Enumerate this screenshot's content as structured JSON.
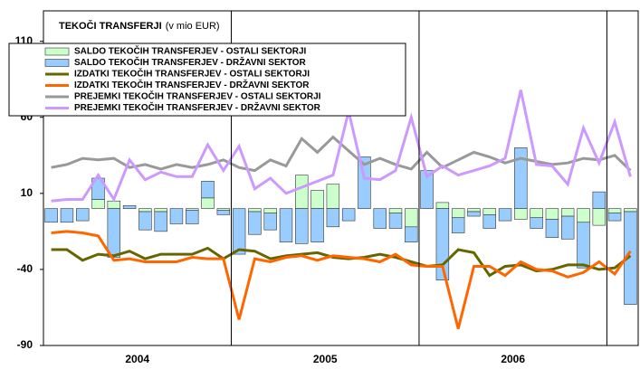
{
  "chart_data": {
    "type": "bar_line",
    "title": "TEKOČI TRANSFERJI",
    "subtitle": "(v mio EUR)",
    "categories": [
      null,
      null,
      null,
      null,
      null,
      null,
      null,
      null,
      null,
      null,
      null,
      null,
      null,
      null,
      null,
      null,
      null,
      null,
      null,
      null,
      null,
      null,
      null,
      null,
      null,
      null,
      null,
      null,
      null,
      null,
      null,
      null,
      null,
      null,
      null,
      null,
      null,
      null
    ],
    "year_labels": [
      "2004",
      "2005",
      "2006"
    ],
    "ylim": [
      -90,
      130
    ],
    "yticks": [
      -90,
      -40,
      10,
      60,
      110
    ],
    "grid": false,
    "series": [
      {
        "name": "SALDO TEKOČIH TRANSFERJEV - OSTALI SEKTORJI",
        "kind": "bar",
        "color": "#ccffcc",
        "values": [
          0,
          0,
          0,
          6,
          5,
          0,
          -2,
          -2,
          0,
          -1,
          7,
          -1,
          0,
          -2,
          -3,
          0,
          22,
          12,
          16,
          0,
          0,
          0,
          -3,
          -12,
          0,
          4,
          -6,
          -2,
          -4,
          0,
          -7,
          -6,
          -7,
          -5,
          -9,
          -11,
          -3,
          -2
        ]
      },
      {
        "name": "SALDO TEKOČIH TRANSFERJEV - DRŽAVNI SEKTOR",
        "kind": "bar",
        "color": "#99ccff",
        "values": [
          -9,
          -9,
          -8,
          14,
          -32,
          2,
          -12,
          -13,
          -10,
          -9,
          11,
          -3,
          -30,
          -15,
          -11,
          -22,
          -23,
          -22,
          -12,
          -8,
          34,
          -13,
          -10,
          -10,
          25,
          -47,
          -10,
          -3,
          -9,
          -8,
          40,
          -7,
          -12,
          -15,
          -30,
          11,
          -5,
          -61
        ]
      },
      {
        "name": "IZDATKI TEKOČIH TRANSFERJEV - OSTALI SEKTORJI",
        "kind": "line",
        "color": "#666600",
        "values": [
          -27,
          -27,
          -34,
          -30,
          -31,
          -28,
          -33,
          -30,
          -30,
          -30,
          -26,
          -33,
          -27,
          -28,
          -33,
          -31,
          -30,
          -29,
          -32,
          -33,
          -32,
          -30,
          -32,
          -35,
          -38,
          -37,
          -27,
          -29,
          -44,
          -38,
          -37,
          -41,
          -40,
          -37,
          -37,
          -40,
          -39,
          -31
        ]
      },
      {
        "name": "IZDATKI TEKOČIH TRANSFERJEV - DRŽAVNI SEKTOR",
        "kind": "line",
        "color": "#ff6600",
        "values": [
          -16,
          -15,
          -16,
          -18,
          -34,
          -33,
          -35,
          -35,
          -35,
          -32,
          -33,
          -33,
          -73,
          -33,
          -35,
          -32,
          -31,
          -34,
          -31,
          -32,
          -33,
          -35,
          -30,
          -37,
          -38,
          -38,
          -79,
          -38,
          -38,
          -44,
          -35,
          -40,
          -41,
          -45,
          -42,
          -35,
          -43,
          -28
        ]
      },
      {
        "name": "PREJEMKI TEKOČIH TRANSFERJEV - OSTALI SEKTORJI",
        "kind": "line",
        "color": "#999999",
        "values": [
          27,
          29,
          33,
          32,
          33,
          27,
          29,
          26,
          29,
          27,
          29,
          32,
          27,
          25,
          32,
          28,
          46,
          37,
          47,
          38,
          29,
          33,
          29,
          26,
          37,
          27,
          32,
          37,
          34,
          30,
          33,
          31,
          29,
          30,
          33,
          32,
          35,
          25
        ]
      },
      {
        "name": "PREJEMKI TEKOČIH TRANSFERJEV - DRŽAVNI SEKTOR",
        "kind": "line",
        "color": "#cc99ff",
        "values": [
          5,
          6,
          6,
          22,
          6,
          32,
          19,
          24,
          21,
          21,
          42,
          25,
          41,
          13,
          20,
          10,
          14,
          18,
          22,
          64,
          20,
          19,
          25,
          60,
          21,
          28,
          22,
          25,
          28,
          33,
          78,
          29,
          28,
          16,
          53,
          30,
          57,
          21
        ]
      }
    ]
  }
}
